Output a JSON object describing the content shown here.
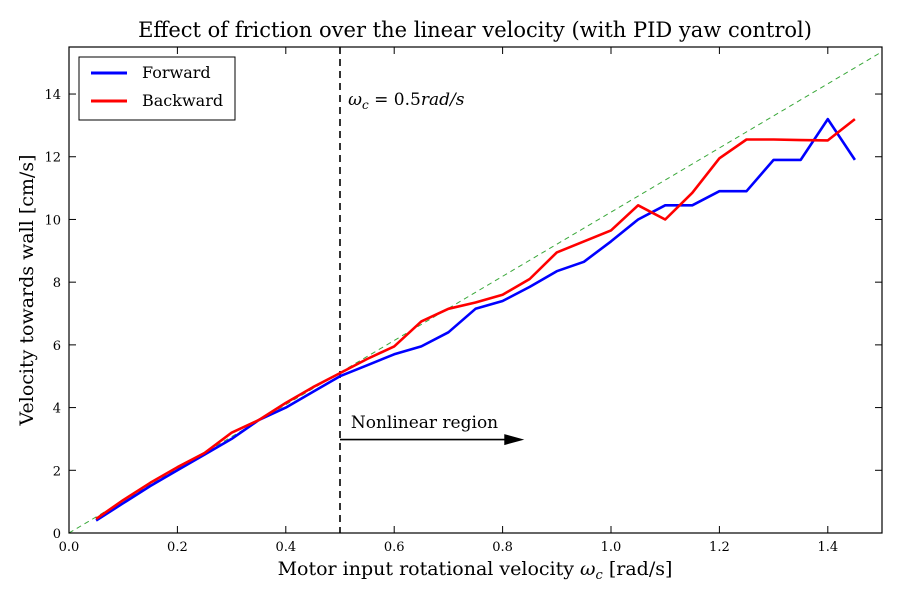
{
  "chart_data": {
    "type": "line",
    "title": "Effect of friction over the linear velocity (with PID yaw control)",
    "xlabel": "Motor input rotational velocity ω_c [rad/s]",
    "xlabel_main": "Motor input rotational velocity ",
    "xlabel_symbol": "ω",
    "xlabel_subscript": "c",
    "xlabel_unit": " [rad/s]",
    "ylabel": "Velocity towards wall [cm/s]",
    "xlim": [
      0.0,
      1.5
    ],
    "ylim": [
      0,
      15.5
    ],
    "xticks": [
      0.0,
      0.2,
      0.4,
      0.6,
      0.8,
      1.0,
      1.2,
      1.4
    ],
    "xtick_labels": [
      "0.0",
      "0.2",
      "0.4",
      "0.6",
      "0.8",
      "1.0",
      "1.2",
      "1.4"
    ],
    "yticks": [
      0,
      2,
      4,
      6,
      8,
      10,
      12,
      14
    ],
    "ytick_labels": [
      "0",
      "2",
      "4",
      "6",
      "8",
      "10",
      "12",
      "14"
    ],
    "grid": false,
    "legend_position": "top-left",
    "series": [
      {
        "name": "Forward",
        "color": "#0000ff",
        "x": [
          0.05,
          0.1,
          0.15,
          0.2,
          0.25,
          0.3,
          0.35,
          0.4,
          0.45,
          0.5,
          0.55,
          0.6,
          0.65,
          0.7,
          0.75,
          0.8,
          0.85,
          0.9,
          0.95,
          1.0,
          1.05,
          1.1,
          1.15,
          1.2,
          1.25,
          1.3,
          1.35,
          1.4,
          1.45
        ],
        "y": [
          0.4,
          0.95,
          1.5,
          2.0,
          2.5,
          3.0,
          3.6,
          4.0,
          4.5,
          5.0,
          5.35,
          5.7,
          5.95,
          6.4,
          7.15,
          7.4,
          7.85,
          8.35,
          8.65,
          9.3,
          10.0,
          10.45,
          10.45,
          10.9,
          10.9,
          11.9,
          11.9,
          13.2,
          11.9
        ]
      },
      {
        "name": "Backward",
        "color": "#ff0000",
        "x": [
          0.05,
          0.1,
          0.15,
          0.2,
          0.25,
          0.3,
          0.35,
          0.4,
          0.45,
          0.5,
          0.55,
          0.6,
          0.65,
          0.7,
          0.75,
          0.8,
          0.85,
          0.9,
          0.95,
          1.0,
          1.05,
          1.1,
          1.15,
          1.2,
          1.25,
          1.3,
          1.35,
          1.4,
          1.45
        ],
        "y": [
          0.45,
          1.05,
          1.6,
          2.1,
          2.55,
          3.2,
          3.6,
          4.15,
          4.65,
          5.1,
          5.55,
          5.95,
          6.75,
          7.15,
          7.35,
          7.6,
          8.1,
          8.95,
          9.3,
          9.65,
          10.45,
          10.0,
          10.85,
          11.95,
          12.55,
          12.55,
          12.53,
          12.52,
          13.2
        ]
      }
    ],
    "reference_line": {
      "color": "#3aa83a",
      "style": "dashed",
      "x": [
        0.0,
        1.5
      ],
      "y": [
        0.0,
        15.35
      ]
    },
    "vline": {
      "x": 0.5,
      "style": "dashed",
      "color": "#000000"
    },
    "annotations": [
      {
        "text": "ω_c = 0.5rad/s",
        "symbol": "ω",
        "subscript": "c",
        "rest": " = 0.5",
        "unit": "rad/s",
        "x": 0.515,
        "y": 13.65
      },
      {
        "text": "Nonlinear region",
        "x": 0.52,
        "y": 3.35,
        "arrow_from": [
          0.5,
          2.98
        ],
        "arrow_to": [
          0.84,
          2.98
        ]
      }
    ]
  }
}
